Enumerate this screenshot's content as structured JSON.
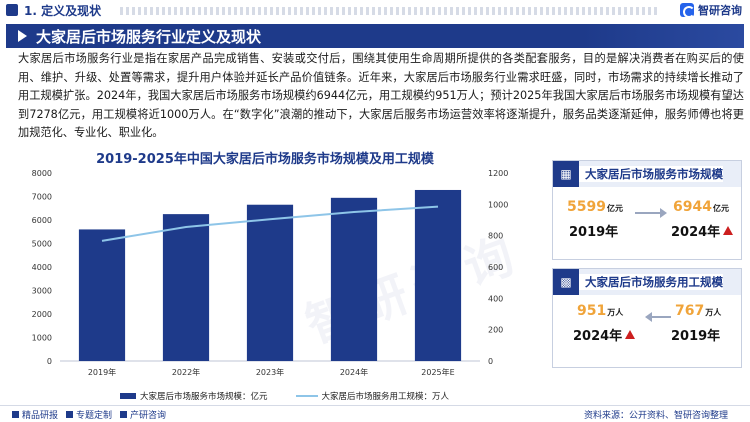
{
  "header": {
    "section_title": "1. 定义及现状",
    "brand_name": "智研咨询"
  },
  "banner": {
    "title": "大家居后市场服务行业定义及现状"
  },
  "paragraph": "大家居后市场服务行业是指在家居产品完成销售、安装或交付后，围绕其使用生命周期所提供的各类配套服务，目的是解决消费者在购买后的使用、维护、升级、处置等需求，提升用户体验并延长产品价值链条。近年来，大家居后市场服务行业需求旺盛，同时，市场需求的持续增长推动了用工规模扩张。2024年，我国大家居后市场服务市场规模约6944亿元，用工规模约951万人；预计2025年我国大家居后市场服务市场规模有望达到7278亿元，用工规模将近1000万人。在“数字化”浪潮的推动下，大家居后服务市场运营效率将逐渐提升，服务品类逐渐延伸，服务师傅也将更加规范化、专业化、职业化。",
  "chart_data": {
    "type": "bar",
    "title": "2019-2025年中国大家居后市场服务市场规模及用工规模",
    "categories": [
      "2019年",
      "2022年",
      "2023年",
      "2024年",
      "2025年E"
    ],
    "series": [
      {
        "name": "大家居后市场服务市场规模：亿元",
        "type": "bar",
        "axis": "left",
        "color": "#1e3a8a",
        "values": [
          5599,
          6250,
          6650,
          6944,
          7278
        ]
      },
      {
        "name": "大家居后市场服务用工规模：万人",
        "type": "line",
        "axis": "right",
        "color": "#8ec5e8",
        "values": [
          767,
          855,
          905,
          951,
          985
        ]
      }
    ],
    "y_left": {
      "min": 0,
      "max": 8000,
      "ticks": [
        0,
        1000,
        2000,
        3000,
        4000,
        5000,
        6000,
        7000,
        8000
      ]
    },
    "y_right": {
      "min": 0,
      "max": 1200,
      "ticks": [
        0,
        200,
        400,
        600,
        800,
        1000,
        1200
      ]
    },
    "grid": false,
    "legend_position": "bottom"
  },
  "cards": {
    "market": {
      "title": "大家居后市场服务市场规模",
      "icon": "building-icon",
      "from_value": "5599",
      "from_unit": "亿元",
      "from_year": "2019年",
      "to_value": "6944",
      "to_unit": "亿元",
      "to_year": "2024年"
    },
    "labor": {
      "title": "大家居后市场服务用工规模",
      "icon": "bar-chart-icon",
      "left_value": "951",
      "left_unit": "万人",
      "left_year": "2024年",
      "right_value": "767",
      "right_unit": "万人",
      "right_year": "2019年"
    }
  },
  "footer": {
    "items": [
      "精品研报",
      "专题定制",
      "产研咨询"
    ],
    "source": "资料来源：公开资料、智研咨询整理"
  },
  "colors": {
    "primary": "#1e3a8a",
    "accent": "#f0a43a",
    "line": "#8ec5e8",
    "up": "#cc1f1f"
  }
}
